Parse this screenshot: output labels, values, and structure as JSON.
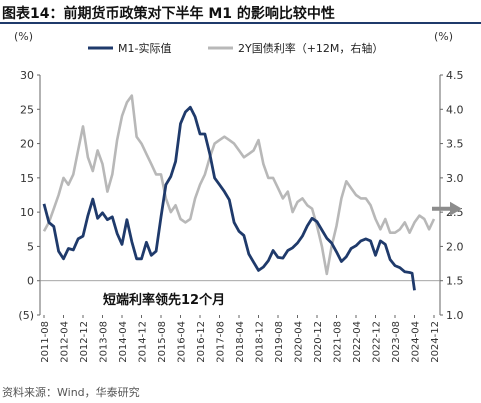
{
  "title": "图表14：前期货币政策对下半年 M1 的影响比较中性",
  "source": "资料来源：Wind，华泰研究",
  "colors": {
    "m1": "#1f3a6b",
    "y2": "#b8b8b8",
    "arrow": "#8c8c8c",
    "title_rule": "#1f3a6b"
  },
  "chart_data": {
    "type": "line",
    "left_axis_label": "(%)",
    "right_axis_label": "(%)",
    "left_ylim": [
      -5,
      30
    ],
    "right_ylim": [
      1.0,
      4.5
    ],
    "left_ticks": [
      "(5)",
      "0",
      "5",
      "10",
      "15",
      "20",
      "25",
      "30"
    ],
    "left_tick_values": [
      -5,
      0,
      5,
      10,
      15,
      20,
      25,
      30
    ],
    "right_ticks": [
      "1.0",
      "1.5",
      "2.0",
      "2.5",
      "3.0",
      "3.5",
      "4.0",
      "4.5"
    ],
    "right_tick_values": [
      1.0,
      1.5,
      2.0,
      2.5,
      3.0,
      3.5,
      4.0,
      4.5
    ],
    "x_ticks": [
      "2011-08",
      "2012-04",
      "2012-12",
      "2013-08",
      "2014-04",
      "2014-12",
      "2015-08",
      "2016-04",
      "2016-12",
      "2017-08",
      "2018-04",
      "2018-12",
      "2019-08",
      "2020-04",
      "2020-12",
      "2021-08",
      "2022-04",
      "2022-12",
      "2023-08",
      "2024-04",
      "2024-12"
    ],
    "annotation": "短端利率领先12个月",
    "series": [
      {
        "name": "M1-实际值",
        "axis": "left",
        "points": [
          [
            "2011-08",
            11.2
          ],
          [
            "2011-10",
            8.5
          ],
          [
            "2011-12",
            7.9
          ],
          [
            "2012-02",
            4.3
          ],
          [
            "2012-04",
            3.2
          ],
          [
            "2012-06",
            4.7
          ],
          [
            "2012-08",
            4.5
          ],
          [
            "2012-10",
            6.1
          ],
          [
            "2012-12",
            6.5
          ],
          [
            "2013-02",
            9.5
          ],
          [
            "2013-04",
            11.9
          ],
          [
            "2013-06",
            9.1
          ],
          [
            "2013-08",
            9.9
          ],
          [
            "2013-10",
            8.9
          ],
          [
            "2013-12",
            9.3
          ],
          [
            "2014-02",
            6.9
          ],
          [
            "2014-04",
            5.3
          ],
          [
            "2014-06",
            8.9
          ],
          [
            "2014-08",
            5.7
          ],
          [
            "2014-10",
            3.2
          ],
          [
            "2014-12",
            3.2
          ],
          [
            "2015-02",
            5.6
          ],
          [
            "2015-04",
            3.7
          ],
          [
            "2015-06",
            4.3
          ],
          [
            "2015-08",
            9.3
          ],
          [
            "2015-10",
            14.0
          ],
          [
            "2015-12",
            15.2
          ],
          [
            "2016-02",
            17.4
          ],
          [
            "2016-04",
            22.9
          ],
          [
            "2016-06",
            24.6
          ],
          [
            "2016-08",
            25.3
          ],
          [
            "2016-10",
            23.9
          ],
          [
            "2016-12",
            21.4
          ],
          [
            "2017-02",
            21.4
          ],
          [
            "2017-04",
            18.5
          ],
          [
            "2017-06",
            15.0
          ],
          [
            "2017-08",
            14.0
          ],
          [
            "2017-10",
            13.0
          ],
          [
            "2017-12",
            11.8
          ],
          [
            "2018-02",
            8.5
          ],
          [
            "2018-04",
            7.2
          ],
          [
            "2018-06",
            6.6
          ],
          [
            "2018-08",
            3.9
          ],
          [
            "2018-10",
            2.7
          ],
          [
            "2018-12",
            1.5
          ],
          [
            "2019-02",
            2.0
          ],
          [
            "2019-04",
            2.9
          ],
          [
            "2019-06",
            4.4
          ],
          [
            "2019-08",
            3.4
          ],
          [
            "2019-10",
            3.3
          ],
          [
            "2019-12",
            4.4
          ],
          [
            "2020-02",
            4.8
          ],
          [
            "2020-04",
            5.5
          ],
          [
            "2020-06",
            6.5
          ],
          [
            "2020-08",
            8.0
          ],
          [
            "2020-10",
            9.1
          ],
          [
            "2020-12",
            8.6
          ],
          [
            "2021-02",
            7.4
          ],
          [
            "2021-04",
            6.2
          ],
          [
            "2021-06",
            5.5
          ],
          [
            "2021-08",
            4.2
          ],
          [
            "2021-10",
            2.8
          ],
          [
            "2021-12",
            3.5
          ],
          [
            "2022-02",
            4.7
          ],
          [
            "2022-04",
            5.1
          ],
          [
            "2022-06",
            5.8
          ],
          [
            "2022-08",
            6.1
          ],
          [
            "2022-10",
            5.8
          ],
          [
            "2022-12",
            3.7
          ],
          [
            "2023-02",
            5.8
          ],
          [
            "2023-04",
            5.3
          ],
          [
            "2023-06",
            3.1
          ],
          [
            "2023-08",
            2.2
          ],
          [
            "2023-10",
            1.9
          ],
          [
            "2023-12",
            1.3
          ],
          [
            "2024-02",
            1.2
          ],
          [
            "2024-03",
            1.1
          ],
          [
            "2024-04",
            -1.4
          ]
        ]
      },
      {
        "name": "2Y国债利率（+12M，右轴）",
        "axis": "right",
        "points": [
          [
            "2011-08",
            2.22
          ],
          [
            "2011-10",
            2.35
          ],
          [
            "2011-12",
            2.55
          ],
          [
            "2012-02",
            2.75
          ],
          [
            "2012-04",
            3.0
          ],
          [
            "2012-06",
            2.9
          ],
          [
            "2012-08",
            3.05
          ],
          [
            "2012-10",
            3.4
          ],
          [
            "2012-12",
            3.75
          ],
          [
            "2013-02",
            3.3
          ],
          [
            "2013-04",
            3.1
          ],
          [
            "2013-06",
            3.4
          ],
          [
            "2013-08",
            3.2
          ],
          [
            "2013-10",
            2.8
          ],
          [
            "2013-12",
            3.05
          ],
          [
            "2014-02",
            3.55
          ],
          [
            "2014-04",
            3.9
          ],
          [
            "2014-06",
            4.1
          ],
          [
            "2014-08",
            4.2
          ],
          [
            "2014-10",
            3.6
          ],
          [
            "2014-12",
            3.5
          ],
          [
            "2015-02",
            3.35
          ],
          [
            "2015-04",
            3.2
          ],
          [
            "2015-06",
            3.05
          ],
          [
            "2015-08",
            3.05
          ],
          [
            "2015-10",
            2.7
          ],
          [
            "2015-12",
            2.5
          ],
          [
            "2016-02",
            2.6
          ],
          [
            "2016-04",
            2.4
          ],
          [
            "2016-06",
            2.35
          ],
          [
            "2016-08",
            2.4
          ],
          [
            "2016-10",
            2.7
          ],
          [
            "2016-12",
            2.9
          ],
          [
            "2017-02",
            3.05
          ],
          [
            "2017-04",
            3.3
          ],
          [
            "2017-06",
            3.5
          ],
          [
            "2017-08",
            3.55
          ],
          [
            "2017-10",
            3.6
          ],
          [
            "2017-12",
            3.55
          ],
          [
            "2018-02",
            3.5
          ],
          [
            "2018-04",
            3.4
          ],
          [
            "2018-06",
            3.3
          ],
          [
            "2018-08",
            3.35
          ],
          [
            "2018-10",
            3.4
          ],
          [
            "2018-12",
            3.55
          ],
          [
            "2019-02",
            3.2
          ],
          [
            "2019-04",
            3.0
          ],
          [
            "2019-06",
            3.0
          ],
          [
            "2019-08",
            2.85
          ],
          [
            "2019-10",
            2.7
          ],
          [
            "2019-12",
            2.8
          ],
          [
            "2020-02",
            2.5
          ],
          [
            "2020-04",
            2.65
          ],
          [
            "2020-06",
            2.7
          ],
          [
            "2020-08",
            2.6
          ],
          [
            "2020-10",
            2.55
          ],
          [
            "2020-12",
            2.3
          ],
          [
            "2021-02",
            2.0
          ],
          [
            "2021-04",
            1.6
          ],
          [
            "2021-06",
            2.0
          ],
          [
            "2021-08",
            2.3
          ],
          [
            "2021-10",
            2.7
          ],
          [
            "2021-12",
            2.95
          ],
          [
            "2022-02",
            2.85
          ],
          [
            "2022-04",
            2.75
          ],
          [
            "2022-06",
            2.7
          ],
          [
            "2022-08",
            2.7
          ],
          [
            "2022-10",
            2.6
          ],
          [
            "2022-12",
            2.4
          ],
          [
            "2023-02",
            2.25
          ],
          [
            "2023-04",
            2.4
          ],
          [
            "2023-06",
            2.2
          ],
          [
            "2023-08",
            2.2
          ],
          [
            "2023-10",
            2.25
          ],
          [
            "2023-12",
            2.35
          ],
          [
            "2024-02",
            2.2
          ],
          [
            "2024-04",
            2.35
          ],
          [
            "2024-06",
            2.45
          ],
          [
            "2024-08",
            2.4
          ],
          [
            "2024-10",
            2.25
          ],
          [
            "2024-12",
            2.4
          ]
        ]
      }
    ],
    "forecast_arrow": {
      "from": [
        "2024-12",
        2.55
      ],
      "direction": "right"
    }
  }
}
